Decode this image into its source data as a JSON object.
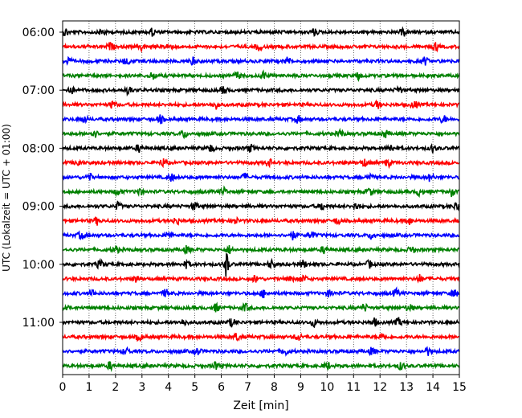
{
  "chart_data": {
    "type": "line",
    "title": "",
    "xlabel": "Zeit  [min]",
    "ylabel": "UTC (Lokalzeit = UTC + 01:00)",
    "xlim": [
      0,
      15
    ],
    "x_ticks": [
      "0",
      "1",
      "2",
      "3",
      "4",
      "5",
      "6",
      "7",
      "8",
      "9",
      "10",
      "11",
      "12",
      "13",
      "14",
      "15"
    ],
    "y_tick_labels": [
      "06:00",
      "07:00",
      "08:00",
      "09:00",
      "10:00",
      "11:00"
    ],
    "trace_interval_minutes": 15,
    "traces_start": "06:00",
    "trace_count": 24,
    "colors_cycle": [
      "#000000",
      "#ff0000",
      "#0000ff",
      "#008000"
    ],
    "vertical_grid": "dotted, every minute",
    "series": [
      {
        "start": "06:00",
        "color": "#000000",
        "events_min": [
          0.1,
          1.5,
          3.4,
          9.5,
          12.9
        ]
      },
      {
        "start": "06:15",
        "color": "#ff0000",
        "events_min": [
          1.8,
          3.0,
          4.0,
          7.4,
          14.1
        ]
      },
      {
        "start": "06:30",
        "color": "#0000ff",
        "events_min": [
          0.2,
          2.4,
          4.9,
          8.5,
          13.7
        ]
      },
      {
        "start": "06:45",
        "color": "#008000",
        "events_min": [
          3.4,
          6.6,
          7.6,
          11.2
        ]
      },
      {
        "start": "07:00",
        "color": "#000000",
        "events_min": [
          0.3,
          2.5,
          6.1,
          12.7
        ]
      },
      {
        "start": "07:15",
        "color": "#ff0000",
        "events_min": [
          1.9,
          5.8,
          11.9,
          13.3
        ]
      },
      {
        "start": "07:30",
        "color": "#0000ff",
        "events_min": [
          0.8,
          3.7,
          8.9,
          14.4
        ]
      },
      {
        "start": "07:45",
        "color": "#008000",
        "events_min": [
          1.2,
          4.6,
          10.5,
          12.2
        ]
      },
      {
        "start": "08:00",
        "color": "#000000",
        "events_min": [
          2.9,
          5.6,
          7.1,
          12.4,
          14.0
        ]
      },
      {
        "start": "08:15",
        "color": "#ff0000",
        "events_min": [
          0.6,
          3.8,
          7.8,
          11.4,
          12.3
        ]
      },
      {
        "start": "08:30",
        "color": "#0000ff",
        "events_min": [
          1.0,
          4.1,
          6.9,
          11.6,
          13.9
        ]
      },
      {
        "start": "08:45",
        "color": "#008000",
        "events_min": [
          2.1,
          2.9,
          6.1,
          11.6,
          13.5,
          14.7
        ]
      },
      {
        "start": "09:00",
        "color": "#000000",
        "events_min": [
          2.1,
          5.0,
          9.8,
          11.1,
          14.9
        ]
      },
      {
        "start": "09:15",
        "color": "#ff0000",
        "events_min": [
          1.3,
          4.3,
          6.5,
          10.4,
          13.1
        ]
      },
      {
        "start": "09:30",
        "color": "#0000ff",
        "events_min": [
          0.7,
          4.0,
          8.7,
          9.4,
          11.7
        ]
      },
      {
        "start": "09:45",
        "color": "#008000",
        "events_min": [
          2.0,
          4.7,
          6.3,
          9.9,
          13.2
        ]
      },
      {
        "start": "10:00",
        "color": "#000000",
        "events_min": [
          1.4,
          4.7,
          6.2,
          7.9,
          9.1,
          11.6
        ]
      },
      {
        "start": "10:15",
        "color": "#ff0000",
        "events_min": [
          2.8,
          7.3,
          8.6,
          9.1,
          13.5
        ]
      },
      {
        "start": "10:30",
        "color": "#0000ff",
        "events_min": [
          1.1,
          3.9,
          7.6,
          10.1,
          12.6,
          14.8
        ]
      },
      {
        "start": "10:45",
        "color": "#008000",
        "events_min": [
          0.1,
          5.8,
          6.9,
          11.4,
          13.1
        ]
      },
      {
        "start": "11:00",
        "color": "#000000",
        "events_min": [
          4.6,
          6.4,
          9.5,
          11.8,
          12.7
        ]
      },
      {
        "start": "11:15",
        "color": "#ff0000",
        "events_min": [
          2.9,
          6.6,
          8.9,
          12.1
        ]
      },
      {
        "start": "11:30",
        "color": "#0000ff",
        "events_min": [
          2.4,
          5.1,
          8.4,
          11.7,
          13.8
        ]
      },
      {
        "start": "11:45",
        "color": "#008000",
        "events_min": [
          1.8,
          5.8,
          10.0,
          12.8
        ]
      }
    ]
  }
}
